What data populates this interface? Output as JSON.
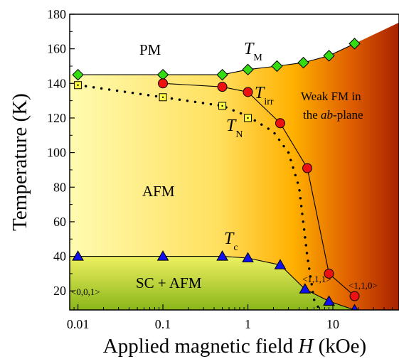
{
  "chart_data": {
    "type": "scatter",
    "x_scale": "log",
    "xlim": [
      0.008,
      60
    ],
    "ylim": [
      9,
      180
    ],
    "xlabel": "Applied magnetic field H (kOe)",
    "xlabel_parts": [
      "Applied magnetic field ",
      "H",
      " (kOe)"
    ],
    "ylabel": "Temperature (K)",
    "x_ticks": [
      0.01,
      0.1,
      1,
      10
    ],
    "x_tick_labels": [
      "0.01",
      "0.1",
      "1",
      "10"
    ],
    "y_ticks": [
      20,
      40,
      60,
      80,
      100,
      120,
      140,
      160,
      180
    ],
    "y_tick_labels": [
      "20",
      "40",
      "60",
      "80",
      "100",
      "120",
      "140",
      "160",
      "180"
    ],
    "regions": {
      "pm": "PM",
      "afm": "AFM",
      "sc_afm": "SC + AFM",
      "weak_fm_line1": "Weak FM in",
      "weak_fm_line2_pre": "the ",
      "weak_fm_line2_em": "ab",
      "weak_fm_line2_post": "-plane"
    },
    "directions": [
      "<0,0,1>",
      "<1,1,1>",
      "<1,1,0>"
    ],
    "series": [
      {
        "name": "T_M",
        "label_main": "T",
        "label_sub": "M",
        "marker": "diamond",
        "color": "#33dd11",
        "connected": true,
        "points": [
          [
            0.01,
            145
          ],
          [
            0.1,
            145
          ],
          [
            0.5,
            145
          ],
          [
            1.0,
            148
          ],
          [
            2.2,
            150
          ],
          [
            4.5,
            152
          ],
          [
            9.0,
            156
          ],
          [
            18.0,
            163
          ]
        ]
      },
      {
        "name": "T_irr",
        "label_main": "T",
        "label_sub": "irr",
        "marker": "circle",
        "color": "#ee1111",
        "connected": true,
        "points": [
          [
            0.1,
            140
          ],
          [
            0.5,
            138
          ],
          [
            1.0,
            135
          ],
          [
            2.4,
            117
          ],
          [
            5.0,
            91
          ],
          [
            9.0,
            30
          ],
          [
            18.0,
            17
          ]
        ]
      },
      {
        "name": "T_N",
        "label_main": "T",
        "label_sub": "N",
        "marker": "square",
        "color": "#ffff44",
        "connected": false,
        "points": [
          [
            0.01,
            139
          ],
          [
            0.1,
            132
          ],
          [
            0.5,
            127
          ],
          [
            1.0,
            120
          ]
        ]
      },
      {
        "name": "T_c",
        "label_main": "T",
        "label_sub": "c",
        "marker": "triangle",
        "color": "#1111ee",
        "connected": true,
        "points": [
          [
            0.01,
            40
          ],
          [
            0.1,
            40
          ],
          [
            0.5,
            40
          ],
          [
            1.0,
            39
          ],
          [
            2.4,
            35
          ],
          [
            4.7,
            21
          ],
          [
            9.0,
            14
          ],
          [
            18.0,
            9
          ]
        ]
      }
    ],
    "dotted_boundary": [
      [
        0.01,
        139
      ],
      [
        0.1,
        132
      ],
      [
        0.5,
        127
      ],
      [
        1.0,
        121
      ],
      [
        2.0,
        112
      ],
      [
        3.0,
        100
      ],
      [
        4.0,
        80
      ],
      [
        5.0,
        40
      ],
      [
        6.0,
        15
      ],
      [
        7.0,
        9
      ]
    ],
    "colors": {
      "background_start": "#fffbb0",
      "background_mid": "#ffd020",
      "background_end": "#a82200",
      "sc_green_light": "#eef060",
      "sc_green_dark": "#8ab61a"
    }
  }
}
